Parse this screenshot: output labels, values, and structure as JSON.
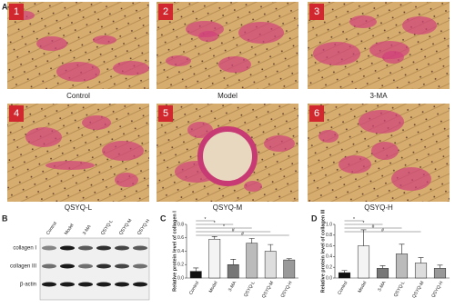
{
  "panel_letters": {
    "a": "A",
    "b": "B",
    "c": "C",
    "d": "D"
  },
  "micrographs": [
    {
      "number": "1",
      "label": "Control"
    },
    {
      "number": "2",
      "label": "Model"
    },
    {
      "number": "3",
      "label": "3-MA"
    },
    {
      "number": "4",
      "label": "QSYQ-L"
    },
    {
      "number": "5",
      "label": "QSYQ-M"
    },
    {
      "number": "6",
      "label": "QSYQ-H"
    }
  ],
  "blot": {
    "lanes": [
      "Control",
      "Model",
      "3-MA",
      "QSYQ-L",
      "QSYQ-M",
      "QSYQ-H"
    ],
    "rows": [
      "collagen I",
      "collagen III",
      "β-actin"
    ]
  },
  "chart_data": [
    {
      "type": "bar",
      "y_label": "Relative protein level of collagen I",
      "categories": [
        "Control",
        "Model",
        "3-MA",
        "QSYQ-L",
        "QSYQ-M",
        "QSYQ-H"
      ],
      "values": [
        0.1,
        0.58,
        0.2,
        0.52,
        0.4,
        0.27
      ],
      "errors": [
        0.05,
        0.04,
        0.08,
        0.07,
        0.1,
        0.02
      ],
      "colors": [
        "#111111",
        "#f4f4f4",
        "#777777",
        "#bbbbbb",
        "#dddddd",
        "#999999"
      ],
      "ylim": [
        0,
        0.8
      ],
      "yticks": [
        {
          "value": 0,
          "label": "0.0"
        },
        0.2,
        0.4,
        0.6,
        0.8
      ],
      "significance": [
        "*",
        "*",
        "*",
        "#",
        "#"
      ]
    },
    {
      "type": "bar",
      "y_label": "Relative protein level of collagen III",
      "categories": [
        "Control",
        "Model",
        "3-MA",
        "QSYQ-L",
        "QSYQ-M",
        "QSYQ-H"
      ],
      "values": [
        0.1,
        0.6,
        0.18,
        0.45,
        0.28,
        0.18
      ],
      "errors": [
        0.04,
        0.3,
        0.05,
        0.18,
        0.1,
        0.06
      ],
      "colors": [
        "#111111",
        "#f4f4f4",
        "#777777",
        "#bbbbbb",
        "#dddddd",
        "#999999"
      ],
      "ylim": [
        0,
        1
      ],
      "yticks": [
        {
          "value": 0,
          "label": "0.0"
        },
        0.2,
        0.4,
        0.6,
        0.8,
        {
          "value": 1,
          "label": "1.0"
        }
      ],
      "significance": [
        "*",
        "*",
        "#",
        "#"
      ]
    }
  ]
}
